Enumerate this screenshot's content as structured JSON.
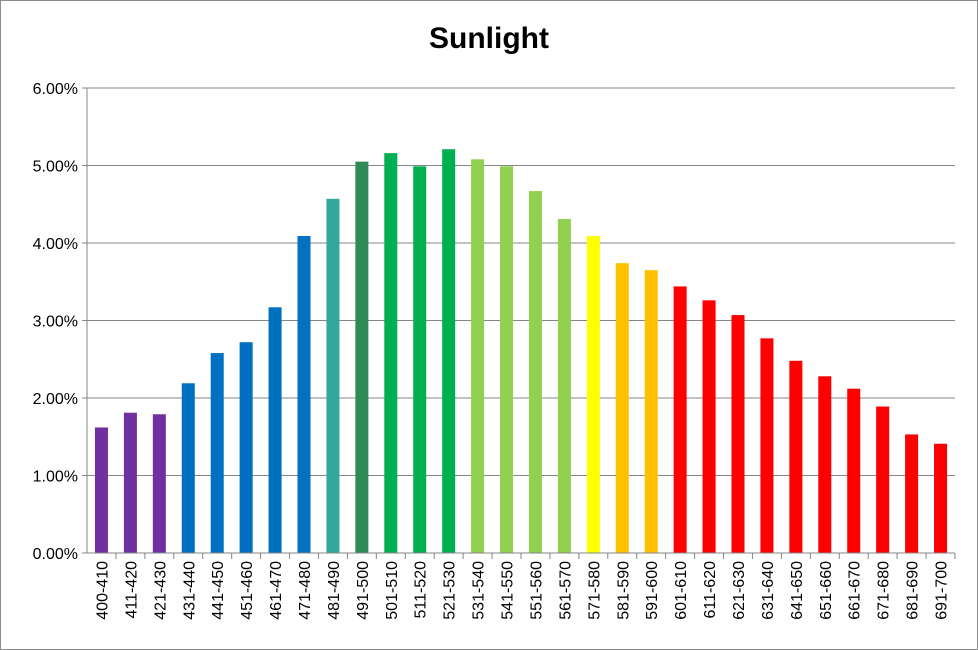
{
  "chart_data": {
    "type": "bar",
    "title": "Sunlight",
    "xlabel": "",
    "ylabel": "",
    "ylim": [
      0,
      0.06
    ],
    "yticks": [
      "0.00%",
      "1.00%",
      "2.00%",
      "3.00%",
      "4.00%",
      "5.00%",
      "6.00%"
    ],
    "grid": true,
    "legend": "none",
    "categories": [
      "400-410",
      "411-420",
      "421-430",
      "431-440",
      "441-450",
      "451-460",
      "461-470",
      "471-480",
      "481-490",
      "491-500",
      "501-510",
      "511-520",
      "521-530",
      "531-540",
      "541-550",
      "551-560",
      "561-570",
      "571-580",
      "581-590",
      "591-600",
      "601-610",
      "611-620",
      "621-630",
      "631-640",
      "641-650",
      "651-660",
      "661-670",
      "671-680",
      "681-690",
      "691-700"
    ],
    "values": [
      0.0162,
      0.0181,
      0.0179,
      0.0219,
      0.0258,
      0.0272,
      0.0317,
      0.0409,
      0.0457,
      0.0505,
      0.0516,
      0.0499,
      0.0521,
      0.0508,
      0.0499,
      0.0467,
      0.0431,
      0.0409,
      0.0374,
      0.0365,
      0.0344,
      0.0326,
      0.0307,
      0.0277,
      0.0248,
      0.0228,
      0.0212,
      0.0189,
      0.0153,
      0.0141
    ],
    "colors": [
      "#7030a0",
      "#7030a0",
      "#7030a0",
      "#0070c0",
      "#0070c0",
      "#0070c0",
      "#0070c0",
      "#0070c0",
      "#31a99b",
      "#2e8b57",
      "#00b050",
      "#00b050",
      "#00b050",
      "#92d050",
      "#92d050",
      "#92d050",
      "#92d050",
      "#ffff00",
      "#ffc000",
      "#ffc000",
      "#ff0000",
      "#ff0000",
      "#ff0000",
      "#ff0000",
      "#ff0000",
      "#ff0000",
      "#ff0000",
      "#ff0000",
      "#ff0000",
      "#ff0000"
    ]
  }
}
